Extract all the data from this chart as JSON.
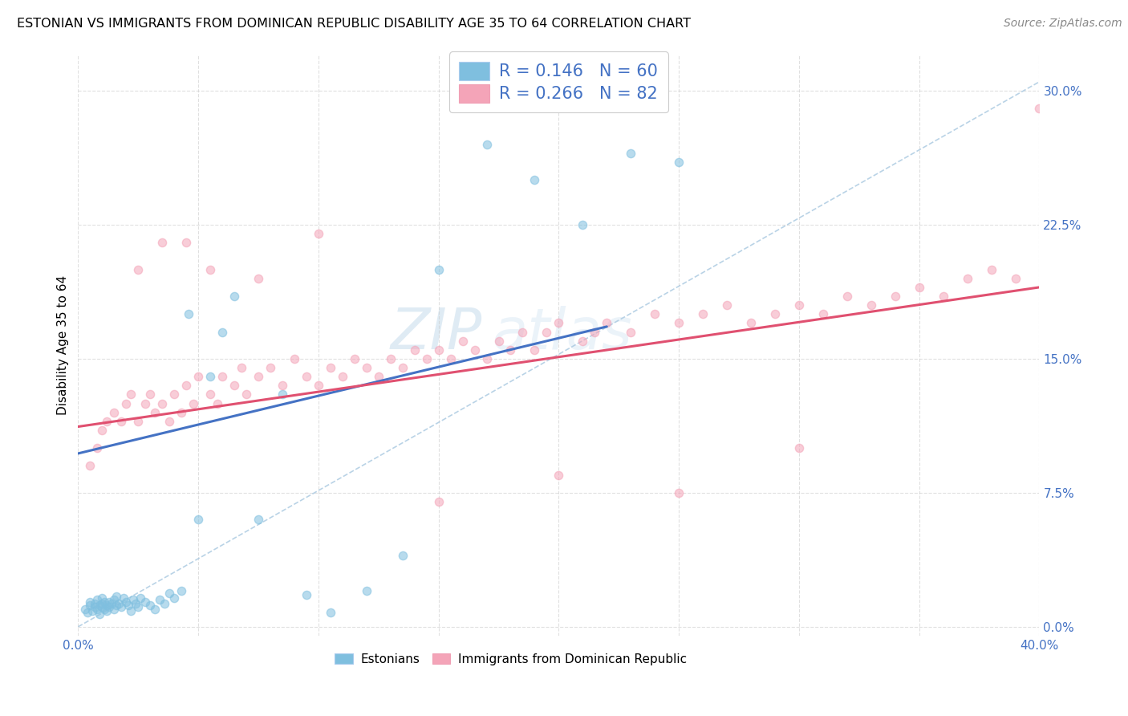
{
  "title": "ESTONIAN VS IMMIGRANTS FROM DOMINICAN REPUBLIC DISABILITY AGE 35 TO 64 CORRELATION CHART",
  "source": "Source: ZipAtlas.com",
  "ylabel": "Disability Age 35 to 64",
  "xlim": [
    0.0,
    0.4
  ],
  "ylim": [
    -0.005,
    0.32
  ],
  "xticks": [
    0.0,
    0.05,
    0.1,
    0.15,
    0.2,
    0.25,
    0.3,
    0.35,
    0.4
  ],
  "yticks": [
    0.0,
    0.075,
    0.15,
    0.225,
    0.3
  ],
  "blue_color": "#7fbfdf",
  "pink_color": "#f4a4b8",
  "trend_blue_color": "#4472c4",
  "trend_pink_color": "#e05070",
  "ref_line_color": "#a8c8e0",
  "watermark_zip": "ZIP",
  "watermark_atlas": "atlas",
  "title_fontsize": 11.5,
  "axis_label_fontsize": 11,
  "tick_fontsize": 11,
  "legend_fontsize": 15,
  "source_fontsize": 10,
  "watermark_fontsize": 52,
  "scatter_size": 55,
  "scatter_alpha": 0.55,
  "scatter_edge_alpha": 0.9,
  "grid_color": "#cccccc",
  "blue_x": [
    0.003,
    0.004,
    0.005,
    0.005,
    0.006,
    0.007,
    0.007,
    0.008,
    0.008,
    0.009,
    0.009,
    0.01,
    0.01,
    0.01,
    0.011,
    0.011,
    0.012,
    0.012,
    0.013,
    0.013,
    0.014,
    0.015,
    0.015,
    0.016,
    0.016,
    0.017,
    0.018,
    0.019,
    0.02,
    0.021,
    0.022,
    0.023,
    0.024,
    0.025,
    0.026,
    0.028,
    0.03,
    0.032,
    0.034,
    0.036,
    0.038,
    0.04,
    0.043,
    0.046,
    0.05,
    0.055,
    0.06,
    0.065,
    0.075,
    0.085,
    0.095,
    0.105,
    0.12,
    0.135,
    0.15,
    0.17,
    0.19,
    0.21,
    0.23,
    0.25
  ],
  "blue_y": [
    0.01,
    0.008,
    0.012,
    0.014,
    0.009,
    0.011,
    0.013,
    0.01,
    0.015,
    0.012,
    0.007,
    0.013,
    0.011,
    0.016,
    0.01,
    0.014,
    0.012,
    0.009,
    0.014,
    0.011,
    0.013,
    0.015,
    0.01,
    0.012,
    0.017,
    0.013,
    0.011,
    0.016,
    0.014,
    0.012,
    0.009,
    0.015,
    0.013,
    0.011,
    0.016,
    0.014,
    0.012,
    0.01,
    0.015,
    0.013,
    0.019,
    0.016,
    0.02,
    0.175,
    0.06,
    0.14,
    0.165,
    0.185,
    0.06,
    0.13,
    0.018,
    0.008,
    0.02,
    0.04,
    0.2,
    0.27,
    0.25,
    0.225,
    0.265,
    0.26
  ],
  "pink_x": [
    0.005,
    0.008,
    0.01,
    0.012,
    0.015,
    0.018,
    0.02,
    0.022,
    0.025,
    0.028,
    0.03,
    0.032,
    0.035,
    0.038,
    0.04,
    0.043,
    0.045,
    0.048,
    0.05,
    0.055,
    0.058,
    0.06,
    0.065,
    0.068,
    0.07,
    0.075,
    0.08,
    0.085,
    0.09,
    0.095,
    0.1,
    0.105,
    0.11,
    0.115,
    0.12,
    0.125,
    0.13,
    0.135,
    0.14,
    0.145,
    0.15,
    0.155,
    0.16,
    0.165,
    0.17,
    0.175,
    0.18,
    0.185,
    0.19,
    0.195,
    0.2,
    0.21,
    0.215,
    0.22,
    0.23,
    0.24,
    0.25,
    0.26,
    0.27,
    0.28,
    0.29,
    0.3,
    0.31,
    0.32,
    0.33,
    0.34,
    0.35,
    0.36,
    0.37,
    0.38,
    0.39,
    0.4,
    0.025,
    0.035,
    0.045,
    0.055,
    0.075,
    0.1,
    0.15,
    0.2,
    0.25,
    0.3
  ],
  "pink_y": [
    0.09,
    0.1,
    0.11,
    0.115,
    0.12,
    0.115,
    0.125,
    0.13,
    0.115,
    0.125,
    0.13,
    0.12,
    0.125,
    0.115,
    0.13,
    0.12,
    0.135,
    0.125,
    0.14,
    0.13,
    0.125,
    0.14,
    0.135,
    0.145,
    0.13,
    0.14,
    0.145,
    0.135,
    0.15,
    0.14,
    0.135,
    0.145,
    0.14,
    0.15,
    0.145,
    0.14,
    0.15,
    0.145,
    0.155,
    0.15,
    0.155,
    0.15,
    0.16,
    0.155,
    0.15,
    0.16,
    0.155,
    0.165,
    0.155,
    0.165,
    0.17,
    0.16,
    0.165,
    0.17,
    0.165,
    0.175,
    0.17,
    0.175,
    0.18,
    0.17,
    0.175,
    0.18,
    0.175,
    0.185,
    0.18,
    0.185,
    0.19,
    0.185,
    0.195,
    0.2,
    0.195,
    0.29,
    0.2,
    0.215,
    0.215,
    0.2,
    0.195,
    0.22,
    0.07,
    0.085,
    0.075,
    0.1
  ],
  "trend_blue_x0": 0.0,
  "trend_blue_y0": 0.097,
  "trend_blue_x1": 0.22,
  "trend_blue_y1": 0.168,
  "trend_pink_x0": 0.0,
  "trend_pink_y0": 0.112,
  "trend_pink_x1": 0.4,
  "trend_pink_y1": 0.19,
  "ref_line_x0": 0.0,
  "ref_line_y0": 0.0,
  "ref_line_x1": 0.4,
  "ref_line_y1": 0.305
}
